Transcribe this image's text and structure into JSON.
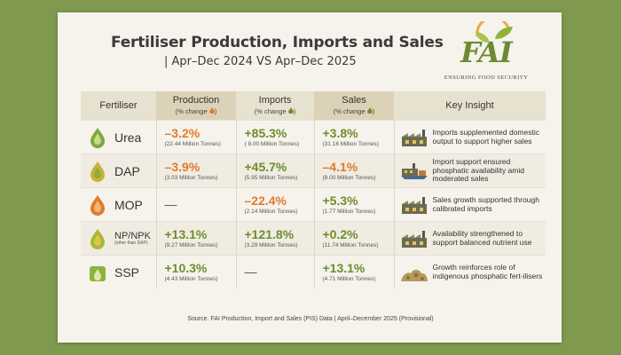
{
  "header": {
    "title": "Fertiliser Production, Imports and Sales",
    "subtitle": "| Apr–Dec 2024 VS Apr–Dec 2025"
  },
  "logo": {
    "text": "FAI",
    "tagline": "ENSURING FOOD SECURITY",
    "colors": {
      "leaf": "#8fb23c",
      "sun": "#e8a93a",
      "text": "#6d8a32"
    }
  },
  "colors": {
    "positive": "#6e8c2e",
    "negative": "#e07a2c",
    "background": "#7f9a4f"
  },
  "chart_data": {
    "type": "table",
    "columns": [
      {
        "label": "Fertiliser",
        "sub": ""
      },
      {
        "label": "Production",
        "sub": "(% change",
        "icon": "orange-down-drop-icon"
      },
      {
        "label": "Imports",
        "sub": "(% change",
        "icon": "green-up-drop-icon"
      },
      {
        "label": "Sales",
        "sub": "(% change",
        "icon": "green-up-drop-icon"
      },
      {
        "label": "Key Insight",
        "sub": ""
      }
    ],
    "rows": [
      {
        "name": "Urea",
        "note": "",
        "icon": "green-drop-icon",
        "production": {
          "pct": "–3.2%",
          "tonnes": "(22.44 Million Tonnes)",
          "dir": "down"
        },
        "imports": {
          "pct": "+85.3%",
          "tonnes": "( 8.00 Million Tonnes)",
          "dir": "up"
        },
        "sales": {
          "pct": "+3.8%",
          "tonnes": "(31.16 Million Tonnes)",
          "dir": "up"
        },
        "insight": "Imports supplemented domestic output to support higher sales"
      },
      {
        "name": "DAP",
        "note": "",
        "icon": "yellow-drop-icon",
        "production": {
          "pct": "–3.9%",
          "tonnes": "(3.03 Million Tonnes)",
          "dir": "down"
        },
        "imports": {
          "pct": "+45.7%",
          "tonnes": "(5.95 Million Tonnes)",
          "dir": "up"
        },
        "sales": {
          "pct": "–4.1%",
          "tonnes": "(8.00 Million Tonnes)",
          "dir": "down"
        },
        "insight": "Import support ensured phosphatic availability amid moderated sales"
      },
      {
        "name": "MOP",
        "note": "",
        "icon": "orange-drop-icon",
        "production": {
          "pct": "—",
          "tonnes": "",
          "dir": "na"
        },
        "imports": {
          "pct": "–22.4%",
          "tonnes": "(2.14 Million Tonnes)",
          "dir": "down"
        },
        "sales": {
          "pct": "+5.3%",
          "tonnes": "(1.77 Million Tonnes)",
          "dir": "up"
        },
        "insight": "Sales growth supported through calibrated imports"
      },
      {
        "name": "NP/NPK",
        "note": "(other than DAP)",
        "icon": "green-yellow-drop-icon",
        "production": {
          "pct": "+13.1%",
          "tonnes": "(9.27 Million Tonnes)",
          "dir": "up"
        },
        "imports": {
          "pct": "+121.8%",
          "tonnes": "(3.29 Million Tonnes)",
          "dir": "up"
        },
        "sales": {
          "pct": "+0.2%",
          "tonnes": "(11.74 Million Tonnes)",
          "dir": "up"
        },
        "insight": "Availability strengthened to support balanced nutrient use"
      },
      {
        "name": "SSP",
        "note": "",
        "icon": "green-box-icon",
        "production": {
          "pct": "+10.3%",
          "tonnes": "(4.43 Million Tonnes)",
          "dir": "up"
        },
        "imports": {
          "pct": "—",
          "tonnes": "",
          "dir": "na"
        },
        "sales": {
          "pct": "+13.1%",
          "tonnes": "(4.71 Million Tonnes)",
          "dir": "up"
        },
        "insight": "Growth reinforces role of indigenous phosphatic fert-ilisers"
      }
    ]
  },
  "footer": {
    "source": "Source. FAI Production, Import and Sales (PIS) Data | April–December 2025 (Provisional)"
  }
}
